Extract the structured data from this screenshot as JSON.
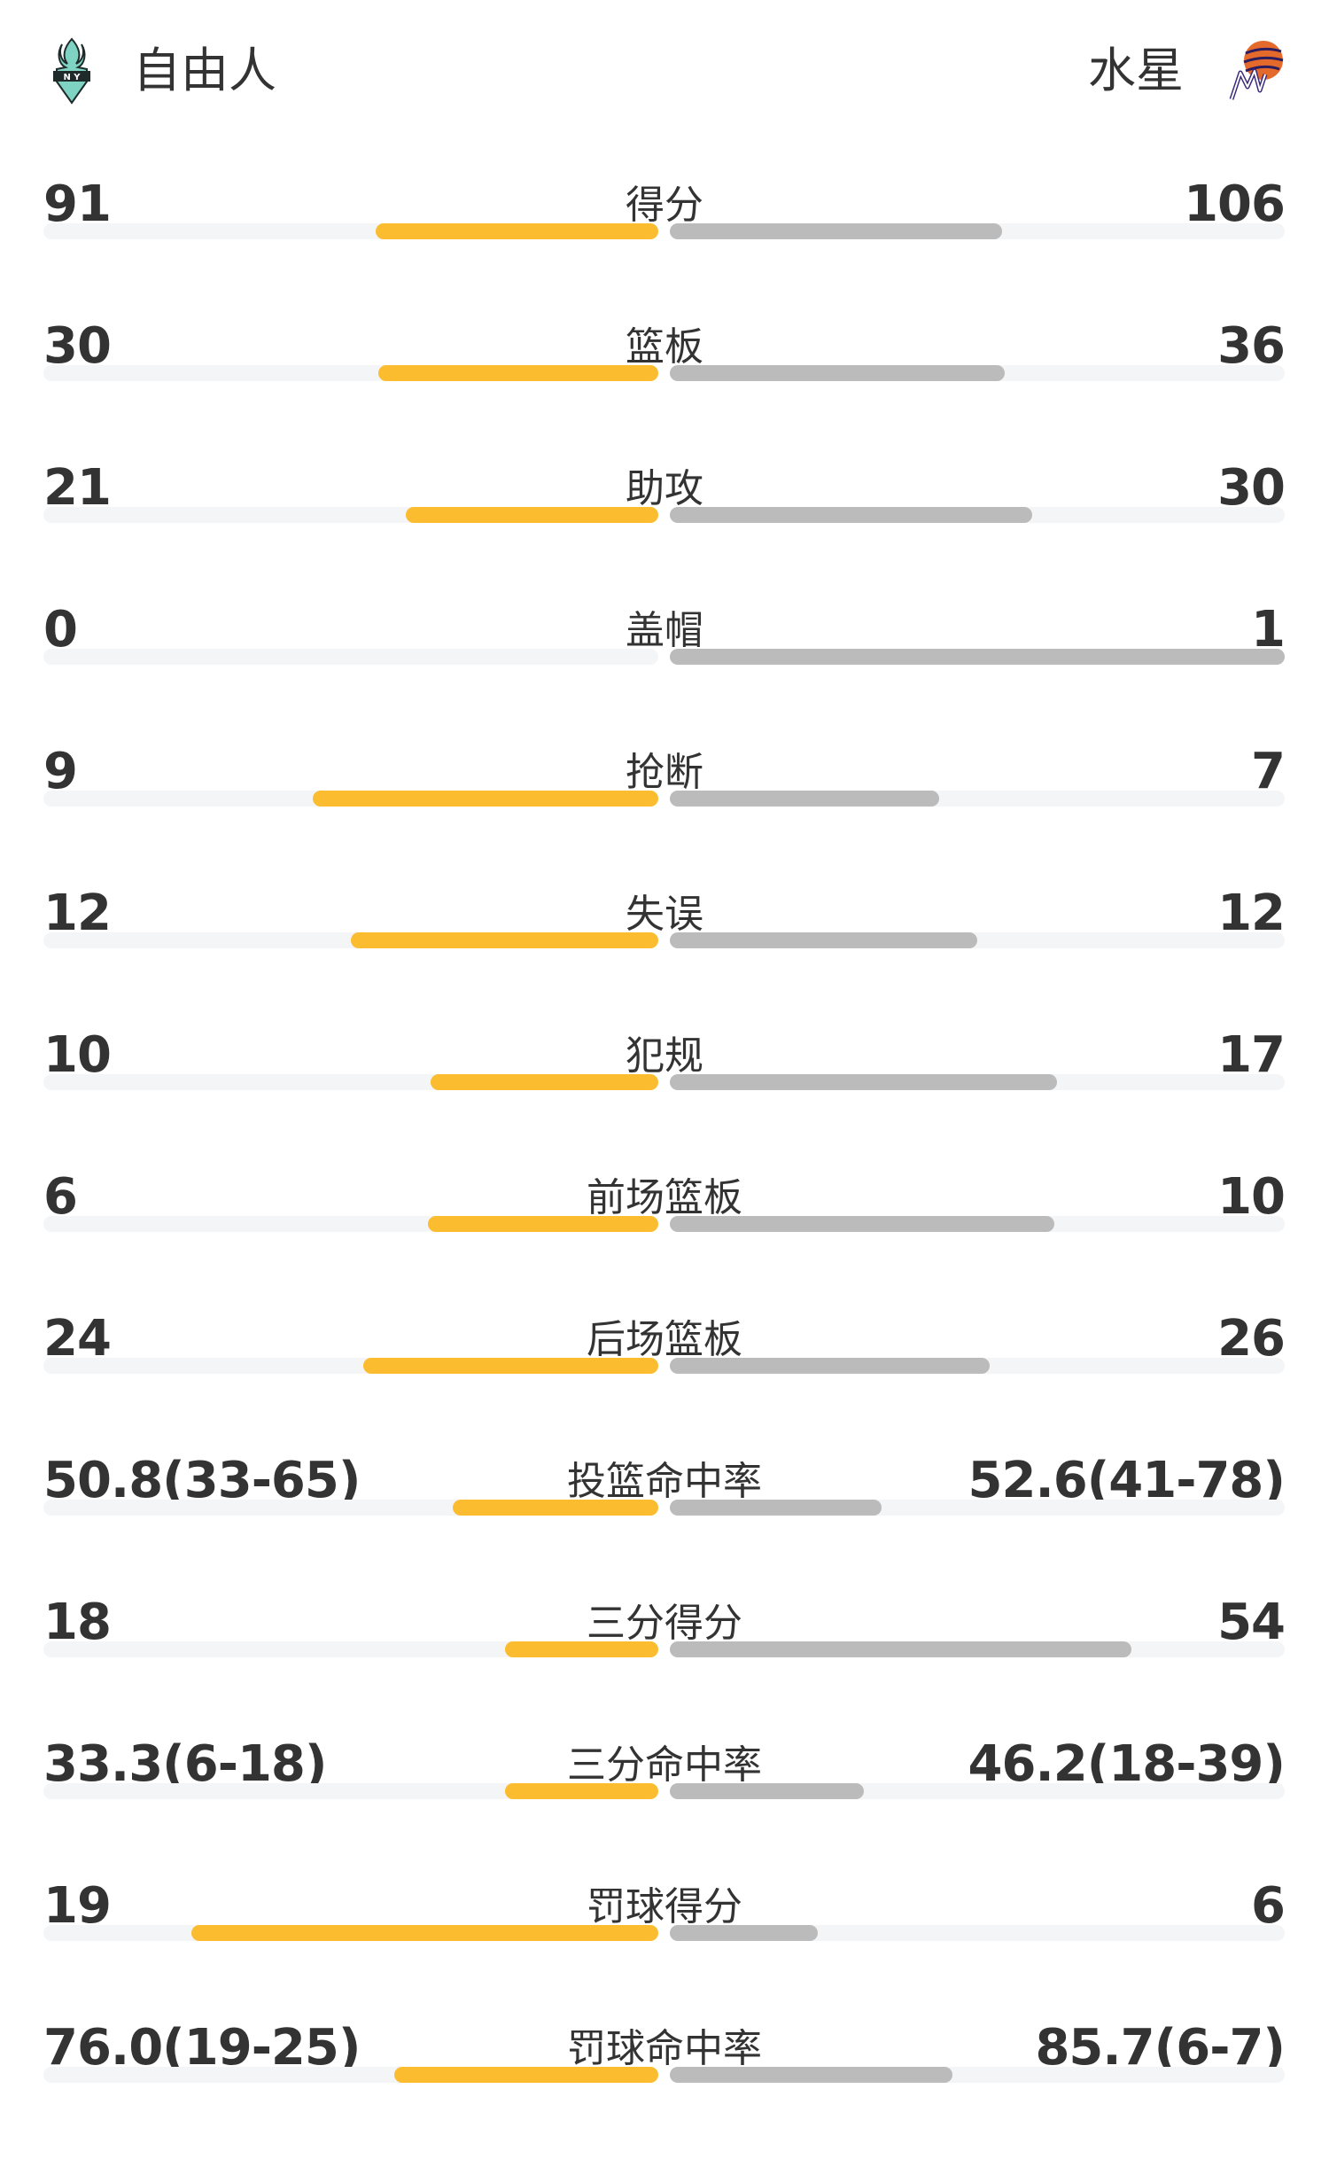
{
  "header": {
    "home_team": "自由人",
    "away_team": "水星",
    "home_logo_icon": "new-york-liberty-logo",
    "away_logo_icon": "phoenix-mercury-logo"
  },
  "colors": {
    "home_bar": "#fbbd2f",
    "away_bar": "#bbbbbb",
    "track": "#f4f5f7"
  },
  "stats": [
    {
      "label": "得分",
      "home": "91",
      "away": "106",
      "home_fill": 0.46,
      "away_fill": 0.54
    },
    {
      "label": "篮板",
      "home": "30",
      "away": "36",
      "home_fill": 0.455,
      "away_fill": 0.545
    },
    {
      "label": "助攻",
      "home": "21",
      "away": "30",
      "home_fill": 0.41,
      "away_fill": 0.59
    },
    {
      "label": "盖帽",
      "home": "0",
      "away": "1",
      "home_fill": 0,
      "away_fill": 1
    },
    {
      "label": "抢断",
      "home": "9",
      "away": "7",
      "home_fill": 0.5625,
      "away_fill": 0.4375
    },
    {
      "label": "失误",
      "home": "12",
      "away": "12",
      "home_fill": 0.5,
      "away_fill": 0.5
    },
    {
      "label": "犯规",
      "home": "10",
      "away": "17",
      "home_fill": 0.37,
      "away_fill": 0.63
    },
    {
      "label": "前场篮板",
      "home": "6",
      "away": "10",
      "home_fill": 0.375,
      "away_fill": 0.625
    },
    {
      "label": "后场篮板",
      "home": "24",
      "away": "26",
      "home_fill": 0.48,
      "away_fill": 0.52
    },
    {
      "label": "投篮命中率",
      "home": "50.8(33-65)",
      "away": "52.6(41-78)",
      "home_fill": 0.335,
      "away_fill": 0.344
    },
    {
      "label": "三分得分",
      "home": "18",
      "away": "54",
      "home_fill": 0.25,
      "away_fill": 0.75
    },
    {
      "label": "三分命中率",
      "home": "33.3(6-18)",
      "away": "46.2(18-39)",
      "home_fill": 0.25,
      "away_fill": 0.315
    },
    {
      "label": "罚球得分",
      "home": "19",
      "away": "6",
      "home_fill": 0.76,
      "away_fill": 0.24
    },
    {
      "label": "罚球命中率",
      "home": "76.0(19-25)",
      "away": "85.7(6-7)",
      "home_fill": 0.43,
      "away_fill": 0.46
    }
  ]
}
